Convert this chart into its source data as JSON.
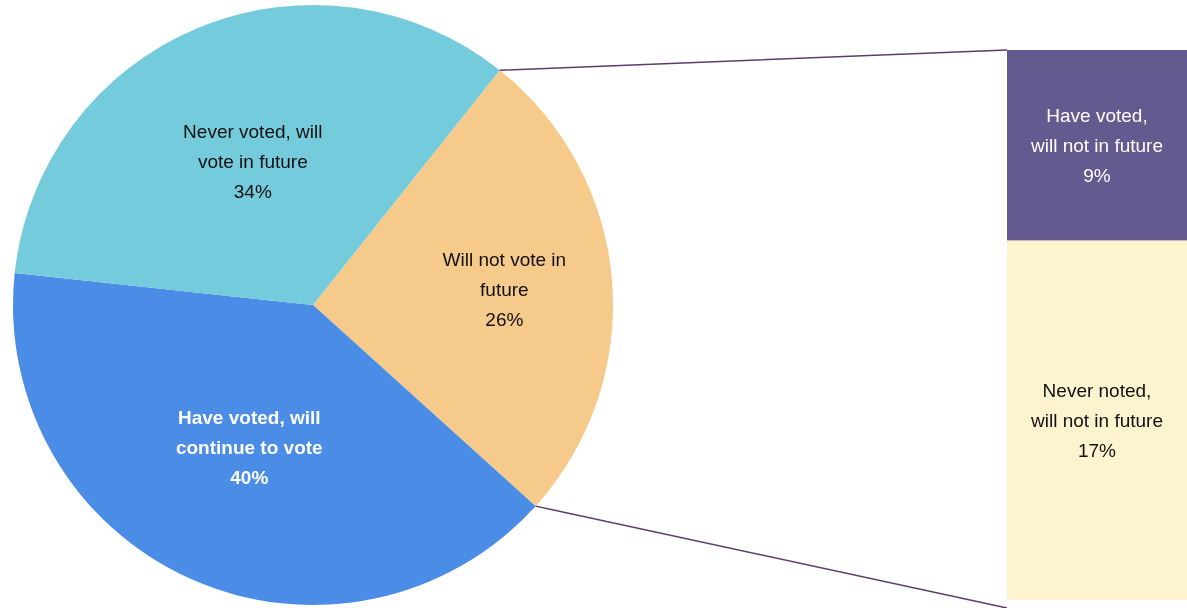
{
  "chart_data": [
    {
      "type": "pie",
      "categories": [
        "Will not vote in future",
        "Have voted, will continue to vote",
        "Never voted, will vote in future"
      ],
      "values": [
        26,
        40,
        34
      ],
      "colors": [
        "#f5ca8a",
        "#4a8ce6",
        "#74cbdb"
      ],
      "value_labels": [
        "26%",
        "40%",
        "34%"
      ]
    },
    {
      "type": "bar",
      "stacked": true,
      "categories": [
        null
      ],
      "ylim": [
        0,
        26
      ],
      "tick_labels": false,
      "series": [
        {
          "name": "Never noted, will not in future",
          "color": "#fef3cf",
          "values": [
            17
          ],
          "value_labels": [
            "17%"
          ]
        },
        {
          "name": "Have voted, will not in future",
          "color": "#655a8f",
          "values": [
            9
          ],
          "value_labels": [
            "9%"
          ]
        }
      ]
    }
  ]
}
